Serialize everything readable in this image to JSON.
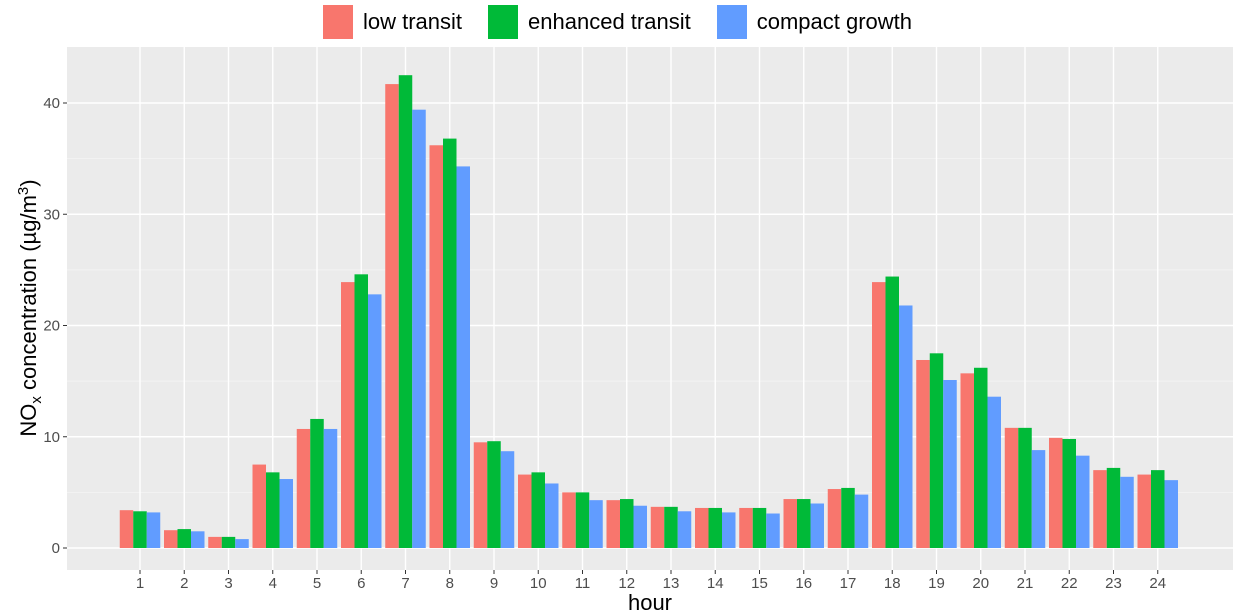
{
  "chart_data": {
    "type": "bar",
    "title": "",
    "xlabel": "hour",
    "ylabel_main": "NO",
    "ylabel_sub": "x",
    "ylabel_rest": " concentration (µg/m",
    "ylabel_sup": "3",
    "ylabel_close": ")",
    "ylim": [
      -2,
      44.5
    ],
    "yticks": [
      0,
      10,
      20,
      30,
      40
    ],
    "grid": true,
    "legend_position": "top",
    "categories": [
      "1",
      "2",
      "3",
      "4",
      "5",
      "6",
      "7",
      "8",
      "9",
      "10",
      "11",
      "12",
      "13",
      "14",
      "15",
      "16",
      "17",
      "18",
      "19",
      "20",
      "21",
      "22",
      "23",
      "24"
    ],
    "series": [
      {
        "name": "low transit",
        "color": "#F8766D",
        "values": [
          3.4,
          1.6,
          1.0,
          7.5,
          10.7,
          23.9,
          41.7,
          36.2,
          9.5,
          6.6,
          5.0,
          4.3,
          3.7,
          3.6,
          3.6,
          4.4,
          5.3,
          23.9,
          16.9,
          15.7,
          10.8,
          9.9,
          7.0,
          6.6
        ]
      },
      {
        "name": "enhanced transit",
        "color": "#00BA38",
        "values": [
          3.3,
          1.7,
          1.0,
          6.8,
          11.6,
          24.6,
          42.5,
          36.8,
          9.6,
          6.8,
          5.0,
          4.4,
          3.7,
          3.6,
          3.6,
          4.4,
          5.4,
          24.4,
          17.5,
          16.2,
          10.8,
          9.8,
          7.2,
          7.0
        ]
      },
      {
        "name": "compact growth",
        "color": "#619CFF",
        "values": [
          3.2,
          1.5,
          0.8,
          6.2,
          10.7,
          22.8,
          39.4,
          34.3,
          8.7,
          5.8,
          4.3,
          3.8,
          3.3,
          3.2,
          3.1,
          4.0,
          4.8,
          21.8,
          15.1,
          13.6,
          8.8,
          8.3,
          6.4,
          6.1
        ]
      }
    ]
  }
}
